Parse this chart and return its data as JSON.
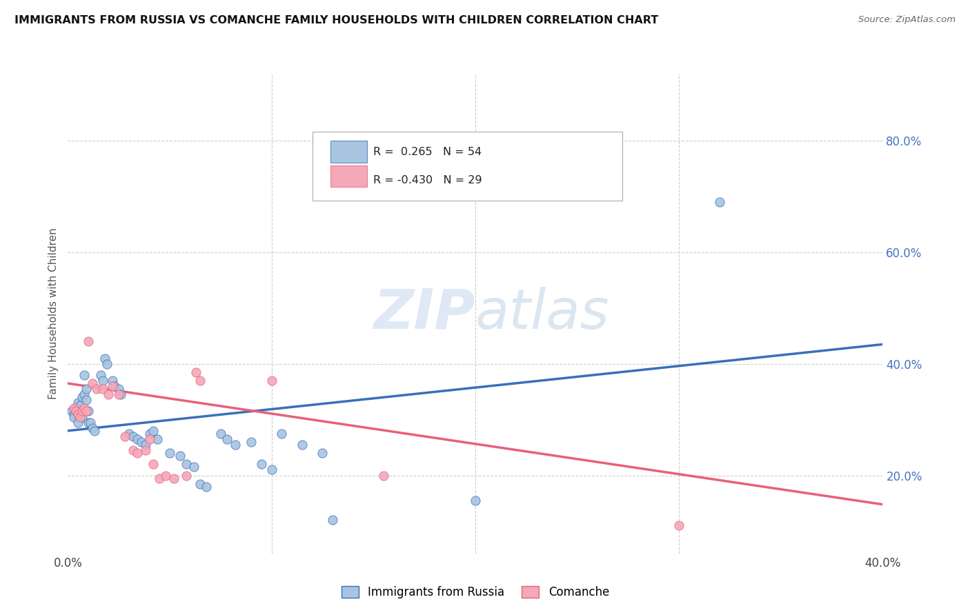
{
  "title": "IMMIGRANTS FROM RUSSIA VS COMANCHE FAMILY HOUSEHOLDS WITH CHILDREN CORRELATION CHART",
  "source": "Source: ZipAtlas.com",
  "ylabel": "Family Households with Children",
  "ytick_labels": [
    "20.0%",
    "40.0%",
    "60.0%",
    "80.0%"
  ],
  "ytick_values": [
    0.2,
    0.4,
    0.6,
    0.8
  ],
  "xlim": [
    0.0,
    0.4
  ],
  "ylim": [
    0.06,
    0.92
  ],
  "legend1_color": "#a8c4e0",
  "legend2_color": "#f4a8b8",
  "blue_line_color": "#3a6fba",
  "pink_line_color": "#e8607a",
  "series1_label": "Immigrants from Russia",
  "series2_label": "Comanche",
  "blue_scatter": [
    [
      0.002,
      0.315
    ],
    [
      0.003,
      0.31
    ],
    [
      0.003,
      0.305
    ],
    [
      0.004,
      0.32
    ],
    [
      0.004,
      0.315
    ],
    [
      0.005,
      0.33
    ],
    [
      0.005,
      0.295
    ],
    [
      0.006,
      0.325
    ],
    [
      0.006,
      0.31
    ],
    [
      0.007,
      0.34
    ],
    [
      0.007,
      0.305
    ],
    [
      0.008,
      0.38
    ],
    [
      0.008,
      0.345
    ],
    [
      0.009,
      0.355
    ],
    [
      0.009,
      0.335
    ],
    [
      0.01,
      0.315
    ],
    [
      0.01,
      0.295
    ],
    [
      0.011,
      0.295
    ],
    [
      0.012,
      0.285
    ],
    [
      0.013,
      0.28
    ],
    [
      0.016,
      0.38
    ],
    [
      0.017,
      0.37
    ],
    [
      0.018,
      0.41
    ],
    [
      0.019,
      0.4
    ],
    [
      0.022,
      0.37
    ],
    [
      0.023,
      0.36
    ],
    [
      0.025,
      0.355
    ],
    [
      0.026,
      0.345
    ],
    [
      0.03,
      0.275
    ],
    [
      0.032,
      0.27
    ],
    [
      0.034,
      0.265
    ],
    [
      0.036,
      0.26
    ],
    [
      0.038,
      0.255
    ],
    [
      0.04,
      0.275
    ],
    [
      0.042,
      0.28
    ],
    [
      0.044,
      0.265
    ],
    [
      0.05,
      0.24
    ],
    [
      0.055,
      0.235
    ],
    [
      0.058,
      0.22
    ],
    [
      0.062,
      0.215
    ],
    [
      0.065,
      0.185
    ],
    [
      0.068,
      0.18
    ],
    [
      0.075,
      0.275
    ],
    [
      0.078,
      0.265
    ],
    [
      0.082,
      0.255
    ],
    [
      0.09,
      0.26
    ],
    [
      0.095,
      0.22
    ],
    [
      0.1,
      0.21
    ],
    [
      0.105,
      0.275
    ],
    [
      0.115,
      0.255
    ],
    [
      0.125,
      0.24
    ],
    [
      0.13,
      0.12
    ],
    [
      0.2,
      0.155
    ],
    [
      0.32,
      0.69
    ]
  ],
  "pink_scatter": [
    [
      0.003,
      0.32
    ],
    [
      0.004,
      0.315
    ],
    [
      0.005,
      0.31
    ],
    [
      0.006,
      0.305
    ],
    [
      0.007,
      0.315
    ],
    [
      0.008,
      0.32
    ],
    [
      0.009,
      0.315
    ],
    [
      0.01,
      0.44
    ],
    [
      0.012,
      0.365
    ],
    [
      0.014,
      0.355
    ],
    [
      0.017,
      0.355
    ],
    [
      0.02,
      0.345
    ],
    [
      0.022,
      0.36
    ],
    [
      0.025,
      0.345
    ],
    [
      0.028,
      0.27
    ],
    [
      0.032,
      0.245
    ],
    [
      0.034,
      0.24
    ],
    [
      0.038,
      0.245
    ],
    [
      0.04,
      0.265
    ],
    [
      0.042,
      0.22
    ],
    [
      0.045,
      0.195
    ],
    [
      0.048,
      0.2
    ],
    [
      0.052,
      0.195
    ],
    [
      0.058,
      0.2
    ],
    [
      0.063,
      0.385
    ],
    [
      0.065,
      0.37
    ],
    [
      0.1,
      0.37
    ],
    [
      0.155,
      0.2
    ],
    [
      0.3,
      0.11
    ]
  ],
  "blue_line_x": [
    0.0,
    0.4
  ],
  "blue_line_y": [
    0.28,
    0.435
  ],
  "pink_line_x": [
    0.0,
    0.4
  ],
  "pink_line_y": [
    0.365,
    0.148
  ]
}
